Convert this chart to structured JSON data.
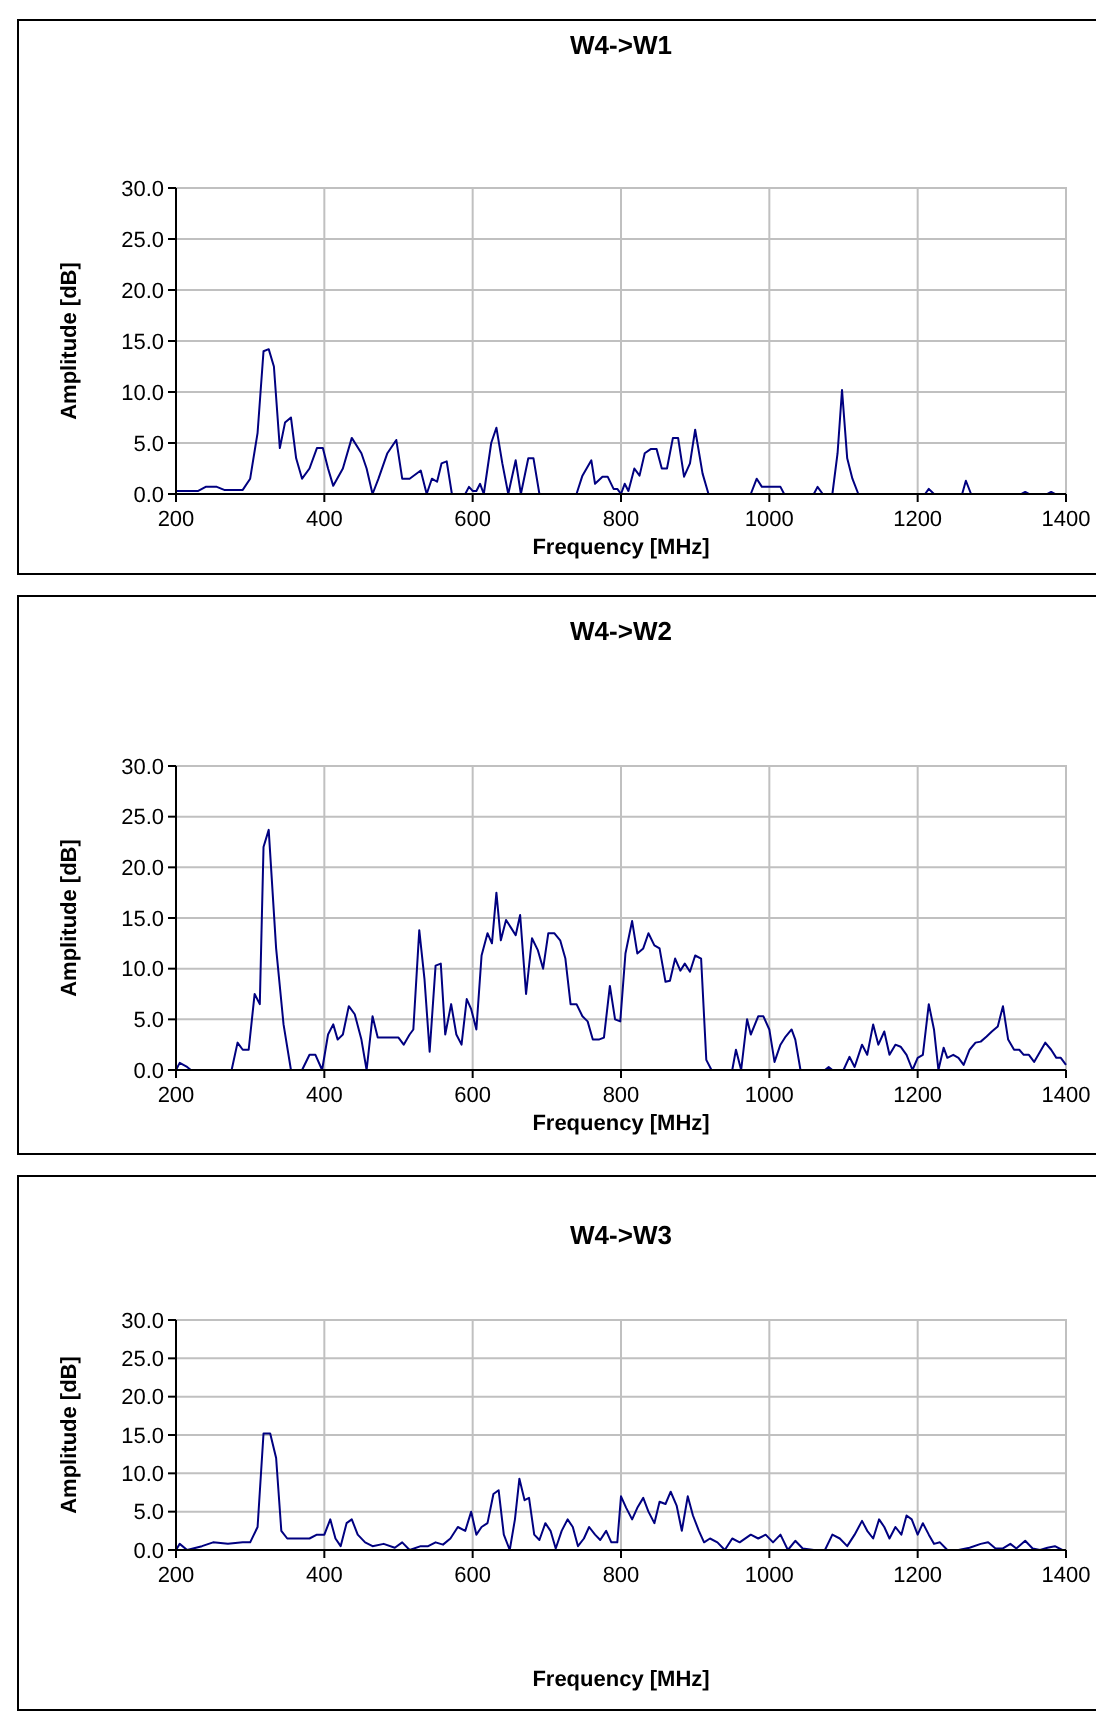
{
  "chart_data": [
    {
      "type": "line",
      "title": "W4->W1",
      "xlabel": "Frequency [MHz]",
      "ylabel": "Amplitude [dB]",
      "xlim": [
        200,
        1400
      ],
      "xticks": [
        200,
        400,
        600,
        800,
        1000,
        1200,
        1400
      ],
      "ylim": [
        0,
        30
      ],
      "yticks": [
        {
          "value": 0,
          "label": "0.0"
        },
        {
          "value": 5,
          "label": "5.0"
        },
        {
          "value": 10,
          "label": "10.0"
        },
        {
          "value": 15,
          "label": "15.0"
        },
        {
          "value": 20,
          "label": "20.0"
        },
        {
          "value": 25,
          "label": "25.0"
        },
        {
          "value": 30,
          "label": "30.0"
        }
      ],
      "grid": true,
      "marker": "none",
      "line_style": "solid",
      "series": [
        {
          "color": "#000080",
          "x": [
            200,
            215,
            230,
            240,
            255,
            265,
            280,
            290,
            300,
            310,
            318,
            325,
            332,
            340,
            347,
            355,
            362,
            370,
            380,
            390,
            398,
            405,
            412,
            425,
            437,
            450,
            457,
            465,
            473,
            485,
            497,
            505,
            515,
            530,
            538,
            545,
            552,
            558,
            565,
            572,
            590,
            595,
            600,
            605,
            610,
            615,
            625,
            632,
            640,
            648,
            658,
            665,
            675,
            682,
            690,
            720,
            740,
            748,
            760,
            765,
            775,
            782,
            790,
            795,
            800,
            805,
            810,
            818,
            825,
            832,
            840,
            848,
            855,
            862,
            870,
            877,
            885,
            893,
            900,
            910,
            918,
            975,
            983,
            990,
            1000,
            1015,
            1020,
            1060,
            1065,
            1072,
            1085,
            1092,
            1098,
            1105,
            1112,
            1120,
            1210,
            1215,
            1222,
            1260,
            1265,
            1272,
            1340,
            1345,
            1350,
            1375,
            1380,
            1385,
            1400
          ],
          "values": [
            0.3,
            0.3,
            0.3,
            0.7,
            0.7,
            0.4,
            0.4,
            0.4,
            1.5,
            6,
            14,
            14.2,
            12.5,
            4.5,
            7,
            7.5,
            3.5,
            1.5,
            2.5,
            4.5,
            4.5,
            2.5,
            0.8,
            2.5,
            5.5,
            4,
            2.5,
            0,
            1.5,
            4,
            5.3,
            1.5,
            1.5,
            2.3,
            0,
            1.5,
            1.2,
            3,
            3.2,
            0,
            0,
            0.7,
            0.3,
            0.3,
            1,
            0,
            5,
            6.5,
            3,
            0,
            3.3,
            0,
            3.5,
            3.5,
            0,
            0,
            0,
            1.8,
            3.3,
            1,
            1.7,
            1.7,
            0.5,
            0.5,
            0,
            1,
            0.3,
            2.5,
            1.8,
            4,
            4.4,
            4.4,
            2.5,
            2.5,
            5.5,
            5.5,
            1.7,
            3,
            6.3,
            2,
            0,
            0,
            1.5,
            0.7,
            0.7,
            0.7,
            0,
            0,
            0.7,
            0,
            0,
            4,
            10.2,
            3.5,
            1.5,
            0,
            0,
            0.5,
            0,
            0,
            1.3,
            0,
            0,
            0.2,
            0,
            0,
            0.2,
            0,
            0
          ]
        }
      ]
    },
    {
      "type": "line",
      "title": "W4->W2",
      "xlabel": "Frequency [MHz]",
      "ylabel": "Amplitude [dB]",
      "xlim": [
        200,
        1400
      ],
      "xticks": [
        200,
        400,
        600,
        800,
        1000,
        1200,
        1400
      ],
      "ylim": [
        0,
        30
      ],
      "yticks": [
        {
          "value": 0,
          "label": "0.0"
        },
        {
          "value": 5,
          "label": "5.0"
        },
        {
          "value": 10,
          "label": "10.0"
        },
        {
          "value": 15,
          "label": "15.0"
        },
        {
          "value": 20,
          "label": "20.0"
        },
        {
          "value": 25,
          "label": "25.0"
        },
        {
          "value": 30,
          "label": "30.0"
        }
      ],
      "grid": true,
      "marker": "none",
      "line_style": "solid",
      "series": [
        {
          "color": "#000080",
          "x": [
            200,
            205,
            215,
            220,
            275,
            283,
            290,
            298,
            306,
            313,
            318,
            325,
            335,
            345,
            355,
            370,
            380,
            388,
            397,
            405,
            412,
            418,
            425,
            433,
            441,
            450,
            457,
            465,
            472,
            490,
            500,
            507,
            515,
            520,
            528,
            535,
            542,
            550,
            557,
            563,
            571,
            578,
            585,
            592,
            598,
            605,
            612,
            620,
            626,
            632,
            638,
            645,
            652,
            658,
            664,
            672,
            680,
            688,
            695,
            702,
            710,
            718,
            725,
            732,
            740,
            748,
            755,
            762,
            770,
            777,
            785,
            792,
            799,
            806,
            815,
            822,
            830,
            837,
            845,
            852,
            860,
            866,
            873,
            880,
            886,
            893,
            900,
            908,
            915,
            922,
            950,
            955,
            962,
            970,
            975,
            985,
            992,
            1000,
            1007,
            1015,
            1022,
            1030,
            1035,
            1042,
            1075,
            1080,
            1085,
            1100,
            1108,
            1115,
            1125,
            1132,
            1140,
            1147,
            1155,
            1162,
            1170,
            1177,
            1185,
            1193,
            1200,
            1207,
            1215,
            1222,
            1228,
            1235,
            1240,
            1248,
            1255,
            1262,
            1270,
            1278,
            1285,
            1293,
            1300,
            1308,
            1315,
            1322,
            1330,
            1337,
            1343,
            1350,
            1357,
            1365,
            1372,
            1380,
            1387,
            1393,
            1400
          ],
          "values": [
            0,
            0.7,
            0.3,
            0,
            0,
            2.7,
            2,
            2,
            7.5,
            6.5,
            22,
            23.7,
            12,
            4.5,
            0,
            0,
            1.5,
            1.5,
            0,
            3.5,
            4.5,
            3,
            3.5,
            6.3,
            5.5,
            3,
            0,
            5.3,
            3.2,
            3.2,
            3.2,
            2.5,
            3.5,
            4,
            13.8,
            9,
            1.8,
            10.3,
            10.5,
            3.5,
            6.5,
            3.5,
            2.5,
            7,
            6,
            4,
            11.3,
            13.5,
            12.5,
            17.5,
            12.8,
            14.8,
            14,
            13.3,
            15.3,
            7.5,
            13,
            11.8,
            10,
            13.5,
            13.5,
            12.8,
            11,
            6.5,
            6.5,
            5.3,
            4.8,
            3,
            3,
            3.2,
            8.3,
            5,
            4.8,
            11.5,
            14.7,
            11.5,
            12,
            13.5,
            12.3,
            12,
            8.7,
            8.8,
            11,
            9.8,
            10.5,
            9.7,
            11.3,
            11,
            1,
            0,
            0,
            2,
            0,
            5,
            3.5,
            5.3,
            5.3,
            4,
            0.8,
            2.5,
            3.3,
            4,
            3,
            0,
            0,
            0.3,
            0,
            0,
            1.3,
            0.3,
            2.5,
            1.5,
            4.5,
            2.5,
            3.8,
            1.5,
            2.5,
            2.3,
            1.5,
            0,
            1.2,
            1.5,
            6.5,
            4,
            0,
            2.2,
            1.2,
            1.5,
            1.2,
            0.5,
            2,
            2.7,
            2.8,
            3.3,
            3.8,
            4.3,
            6.3,
            3,
            2,
            2,
            1.5,
            1.5,
            0.8,
            1.8,
            2.7,
            2,
            1.2,
            1.2,
            0.5
          ]
        }
      ]
    },
    {
      "type": "line",
      "title": "W4->W3",
      "xlabel": "Frequency [MHz]",
      "ylabel": "Amplitude [dB]",
      "xlim": [
        200,
        1400
      ],
      "xticks": [
        200,
        400,
        600,
        800,
        1000,
        1200,
        1400
      ],
      "ylim": [
        0,
        30
      ],
      "yticks": [
        {
          "value": 0,
          "label": "0.0"
        },
        {
          "value": 5,
          "label": "5.0"
        },
        {
          "value": 10,
          "label": "10.0"
        },
        {
          "value": 15,
          "label": "15.0"
        },
        {
          "value": 20,
          "label": "20.0"
        },
        {
          "value": 25,
          "label": "25.0"
        },
        {
          "value": 30,
          "label": "30.0"
        }
      ],
      "grid": true,
      "marker": "none",
      "line_style": "solid",
      "series": [
        {
          "color": "#000080",
          "x": [
            200,
            205,
            215,
            235,
            250,
            270,
            290,
            300,
            310,
            318,
            327,
            335,
            342,
            350,
            365,
            380,
            390,
            400,
            408,
            415,
            422,
            430,
            437,
            445,
            455,
            465,
            480,
            495,
            505,
            515,
            530,
            540,
            550,
            560,
            570,
            580,
            590,
            598,
            605,
            612,
            620,
            628,
            635,
            642,
            650,
            657,
            663,
            670,
            676,
            683,
            690,
            698,
            705,
            712,
            720,
            728,
            735,
            742,
            750,
            757,
            765,
            772,
            780,
            787,
            795,
            800,
            807,
            815,
            822,
            830,
            837,
            845,
            852,
            860,
            867,
            875,
            882,
            890,
            897,
            905,
            912,
            920,
            930,
            940,
            950,
            960,
            975,
            985,
            995,
            1005,
            1015,
            1025,
            1035,
            1045,
            1060,
            1075,
            1085,
            1095,
            1105,
            1115,
            1125,
            1132,
            1140,
            1148,
            1155,
            1162,
            1170,
            1178,
            1185,
            1192,
            1200,
            1207,
            1215,
            1222,
            1230,
            1240,
            1255,
            1270,
            1285,
            1295,
            1305,
            1315,
            1325,
            1333,
            1345,
            1355,
            1365,
            1375,
            1385,
            1395,
            1400
          ],
          "values": [
            0,
            0.8,
            0,
            0.5,
            1,
            0.8,
            1,
            1,
            3,
            15.2,
            15.2,
            12,
            2.5,
            1.5,
            1.5,
            1.5,
            2,
            2,
            4,
            1.5,
            0.5,
            3.5,
            4,
            2,
            1,
            0.5,
            0.8,
            0.3,
            1,
            0,
            0.5,
            0.5,
            1,
            0.7,
            1.5,
            3,
            2.5,
            5,
            2,
            3,
            3.5,
            7.3,
            7.8,
            2,
            0,
            4,
            9.3,
            6.5,
            6.8,
            2,
            1.3,
            3.5,
            2.5,
            0.2,
            2.5,
            4,
            3,
            0.5,
            1.5,
            3,
            2,
            1.3,
            2.5,
            1,
            1,
            7,
            5.5,
            4,
            5.5,
            6.8,
            5,
            3.5,
            6.3,
            6,
            7.6,
            5.8,
            2.5,
            7,
            4.5,
            2.5,
            1,
            1.5,
            1,
            0,
            1.5,
            1,
            2,
            1.5,
            2,
            1,
            2,
            0,
            1.2,
            0.2,
            0,
            0,
            2,
            1.5,
            0.5,
            2,
            3.8,
            2.5,
            1.5,
            4,
            3,
            1.5,
            3,
            2,
            4.5,
            4,
            2,
            3.5,
            2,
            0.8,
            1,
            0,
            0,
            0.3,
            0.8,
            1,
            0.2,
            0.2,
            0.8,
            0.2,
            1.2,
            0.2,
            0,
            0.3,
            0.5,
            0,
            0
          ]
        }
      ]
    }
  ]
}
